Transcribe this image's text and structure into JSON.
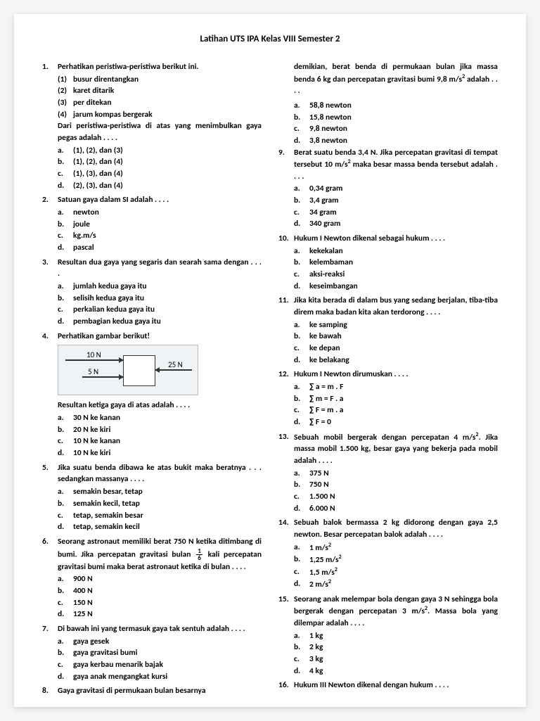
{
  "title": "Latihan UTS IPA Kelas VIII Semester 2",
  "diagram": {
    "label_top": "10 N",
    "label_mid": "5 N",
    "label_right": "25 N"
  },
  "left_questions": [
    {
      "n": "1.",
      "stem": "Perhatikan peristiwa-peristiwa berikut ini.",
      "subs": [
        {
          "l": "(1)",
          "t": "busur direntangkan"
        },
        {
          "l": "(2)",
          "t": "karet ditarik"
        },
        {
          "l": "(3)",
          "t": "per ditekan"
        },
        {
          "l": "(4)",
          "t": "jarum kompas bergerak"
        }
      ],
      "tail": "Dari peristiwa-peristiwa di atas yang menimbulkan gaya pegas adalah . . . .",
      "opts": [
        {
          "l": "a.",
          "t": "(1), (2), dan (3)"
        },
        {
          "l": "b.",
          "t": "(1), (2), dan (4)"
        },
        {
          "l": "c.",
          "t": "(1), (3), dan (4)"
        },
        {
          "l": "d.",
          "t": "(2), (3), dan (4)"
        }
      ]
    },
    {
      "n": "2.",
      "stem": "Satuan gaya dalam SI adalah . . . .",
      "opts": [
        {
          "l": "a.",
          "t": "newton"
        },
        {
          "l": "b.",
          "t": "joule"
        },
        {
          "l": "c.",
          "t": "kg.m/s"
        },
        {
          "l": "d.",
          "t": "pascal"
        }
      ]
    },
    {
      "n": "3.",
      "stem": "Resultan dua gaya yang segaris dan searah sama dengan . . . .",
      "opts": [
        {
          "l": "a.",
          "t": "jumlah kedua gaya itu"
        },
        {
          "l": "b.",
          "t": "selisih kedua gaya itu"
        },
        {
          "l": "c.",
          "t": "perkalian kedua gaya itu"
        },
        {
          "l": "d.",
          "t": "pembagian kedua gaya itu"
        }
      ]
    },
    {
      "n": "4.",
      "stem": "Perhatikan gambar berikut!",
      "has_diagram": true,
      "tail": "Resultan ketiga gaya di atas adalah . . . .",
      "opts": [
        {
          "l": "a.",
          "t": "30 N ke kanan"
        },
        {
          "l": "b.",
          "t": "20 N ke kiri"
        },
        {
          "l": "c.",
          "t": "10 N ke kanan"
        },
        {
          "l": "d.",
          "t": "10 N ke kiri"
        }
      ]
    },
    {
      "n": "5.",
      "stem": "Jika suatu benda dibawa ke atas bukit maka beratnya . . . sedangkan massanya . . . .",
      "opts": [
        {
          "l": "a.",
          "t": "semakin besar, tetap"
        },
        {
          "l": "b.",
          "t": "semakin kecil, tetap"
        },
        {
          "l": "c.",
          "t": "tetap, semakin besar"
        },
        {
          "l": "d.",
          "t": "tetap, semakin kecil"
        }
      ]
    },
    {
      "n": "6.",
      "stem_html": "Seorang astronaut memiliki berat 750 N ketika ditimbang di bumi. Jika percepatan gravitasi bulan <span class='frac'><span class='t'>1</span><span class='b'>6</span></span> kali percepatan gravitasi bumi maka berat astronaut ketika di bulan . . . .",
      "opts": [
        {
          "l": "a.",
          "t": "900 N"
        },
        {
          "l": "b.",
          "t": "400 N"
        },
        {
          "l": "c.",
          "t": "150 N"
        },
        {
          "l": "d.",
          "t": "125 N"
        }
      ]
    },
    {
      "n": "7.",
      "stem": "Di bawah ini yang termasuk gaya tak sentuh adalah . . . .",
      "opts": [
        {
          "l": "a.",
          "t": "gaya gesek"
        },
        {
          "l": "b.",
          "t": "gaya gravitasi bumi"
        },
        {
          "l": "c.",
          "t": "gaya kerbau menarik bajak"
        },
        {
          "l": "d.",
          "t": "gaya anak mengangkat kursi"
        }
      ]
    },
    {
      "n": "8.",
      "stem": "Gaya gravitasi di permukaan bulan besarnya"
    }
  ],
  "right_cont_html": "demikian, berat benda di permukaan bulan jika massa benda 6 kg dan percepatan gravitasi bumi 9,8 m/s<sup>2</sup> adalah . . . .",
  "right_cont_opts": [
    {
      "l": "a.",
      "t": "58,8 newton"
    },
    {
      "l": "b.",
      "t": "15,8 newton"
    },
    {
      "l": "c.",
      "t": "9,8 newton"
    },
    {
      "l": "d.",
      "t": "3,8 newton"
    }
  ],
  "right_questions": [
    {
      "n": "9.",
      "stem_html": "Berat suatu benda 3,4 N. Jika percepatan gravitasi di tempat tersebut 10 m/s<sup>2</sup> maka besar massa benda tersebut adalah . . . .",
      "opts": [
        {
          "l": "a.",
          "t": "0,34 gram"
        },
        {
          "l": "b.",
          "t": "3,4 gram"
        },
        {
          "l": "c.",
          "t": "34 gram"
        },
        {
          "l": "d.",
          "t": "340 gram"
        }
      ]
    },
    {
      "n": "10.",
      "stem": "Hukum I Newton dikenal sebagai hukum . . . .",
      "opts": [
        {
          "l": "a.",
          "t": "kekekalan"
        },
        {
          "l": "b.",
          "t": "kelembaman"
        },
        {
          "l": "c.",
          "t": "aksi-reaksi"
        },
        {
          "l": "d.",
          "t": "keseimbangan"
        }
      ]
    },
    {
      "n": "11.",
      "stem": "Jika kita berada di dalam bus yang sedang berjalan, tiba-tiba direm maka badan kita akan terdorong . . . .",
      "opts": [
        {
          "l": "a.",
          "t": "ke samping"
        },
        {
          "l": "b.",
          "t": "ke bawah"
        },
        {
          "l": "c.",
          "t": "ke depan"
        },
        {
          "l": "d.",
          "t": "ke belakang"
        }
      ]
    },
    {
      "n": "12.",
      "stem": "Hukum I Newton dirumuskan . . . .",
      "opts": [
        {
          "l": "a.",
          "t": "∑ a = m . F"
        },
        {
          "l": "b.",
          "t": "∑ m = F . a"
        },
        {
          "l": "c.",
          "t": "∑ F = m . a"
        },
        {
          "l": "d.",
          "t": "∑ F = 0"
        }
      ]
    },
    {
      "n": "13.",
      "stem_html": "Sebuah mobil bergerak dengan percepatan 4 m/s<sup>2</sup>. Jika massa mobil 1.500 kg, besar gaya yang bekerja pada mobil adalah . . . .",
      "opts": [
        {
          "l": "a.",
          "t": "375 N"
        },
        {
          "l": "b.",
          "t": "750 N"
        },
        {
          "l": "c.",
          "t": "1.500 N"
        },
        {
          "l": "d.",
          "t": "6.000 N"
        }
      ]
    },
    {
      "n": "14.",
      "stem": "Sebuah balok bermassa 2 kg didorong dengan gaya 2,5 newton. Besar percepatan balok adalah . . . .",
      "opts": [
        {
          "l": "a.",
          "t_html": "1 m/s<sup>2</sup>"
        },
        {
          "l": "b.",
          "t_html": "1,25 m/s<sup>2</sup>"
        },
        {
          "l": "c.",
          "t_html": "1,5 m/s<sup>2</sup>"
        },
        {
          "l": "d.",
          "t_html": "2 m/s<sup>2</sup>"
        }
      ]
    },
    {
      "n": "15.",
      "stem_html": "Seorang anak melempar bola dengan gaya 3 N sehingga bola bergerak dengan percepatan 3 m/s<sup>2</sup>. Massa bola yang dilempar adalah . . . .",
      "opts": [
        {
          "l": "a.",
          "t": "1 kg"
        },
        {
          "l": "b.",
          "t": "2 kg"
        },
        {
          "l": "c.",
          "t": "3 kg"
        },
        {
          "l": "d.",
          "t": "4 kg"
        }
      ]
    },
    {
      "n": "16.",
      "stem": "Hukum III Newton dikenal dengan hukum . . . ."
    }
  ]
}
